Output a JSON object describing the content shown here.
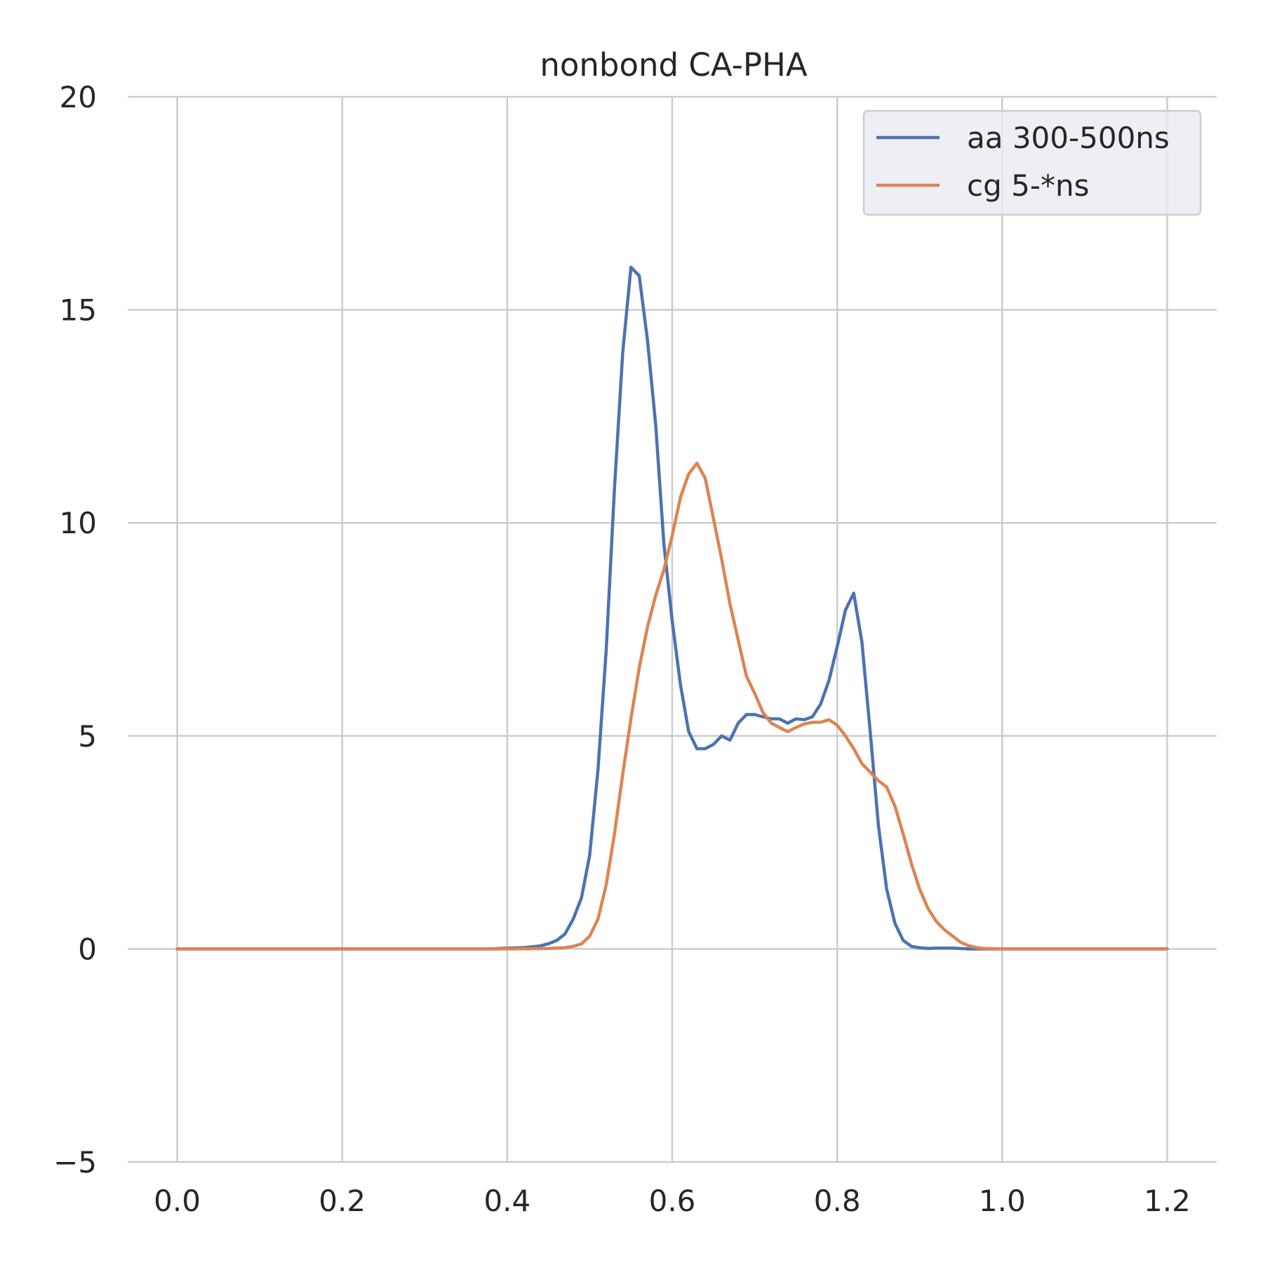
{
  "chart_data": {
    "type": "line",
    "title": "nonbond CA-PHA",
    "xlabel": "",
    "ylabel": "",
    "xlim": [
      -0.06,
      1.26
    ],
    "ylim": [
      -5,
      20
    ],
    "xticks": [
      0.0,
      0.2,
      0.4,
      0.6,
      0.8,
      1.0,
      1.2
    ],
    "xtick_labels": [
      "0.0",
      "0.2",
      "0.4",
      "0.6",
      "0.8",
      "1.0",
      "1.2"
    ],
    "yticks": [
      -5,
      0,
      5,
      10,
      15,
      20
    ],
    "ytick_labels": [
      "−5",
      "0",
      "5",
      "10",
      "15",
      "20"
    ],
    "grid": true,
    "legend_position": "top-right",
    "series": [
      {
        "name": "aa 300-500ns",
        "color": "#4c72b0",
        "x": [
          0.0,
          0.1,
          0.2,
          0.3,
          0.38,
          0.4,
          0.42,
          0.44,
          0.45,
          0.46,
          0.47,
          0.48,
          0.49,
          0.5,
          0.51,
          0.52,
          0.53,
          0.54,
          0.55,
          0.56,
          0.57,
          0.58,
          0.59,
          0.6,
          0.61,
          0.62,
          0.63,
          0.64,
          0.65,
          0.66,
          0.67,
          0.68,
          0.69,
          0.7,
          0.71,
          0.72,
          0.73,
          0.74,
          0.75,
          0.76,
          0.77,
          0.78,
          0.79,
          0.8,
          0.81,
          0.82,
          0.83,
          0.84,
          0.85,
          0.86,
          0.87,
          0.88,
          0.89,
          0.9,
          0.91,
          0.92,
          0.93,
          0.94,
          0.95,
          0.96,
          0.97,
          0.98,
          1.0,
          1.1,
          1.2
        ],
        "y": [
          0,
          0,
          0,
          0,
          0,
          0.02,
          0.03,
          0.07,
          0.12,
          0.2,
          0.35,
          0.7,
          1.2,
          2.2,
          4.2,
          7.0,
          10.8,
          14.0,
          16.0,
          15.8,
          14.3,
          12.3,
          9.5,
          7.7,
          6.2,
          5.1,
          4.7,
          4.7,
          4.8,
          5.0,
          4.9,
          5.3,
          5.5,
          5.5,
          5.45,
          5.4,
          5.4,
          5.3,
          5.4,
          5.38,
          5.45,
          5.75,
          6.3,
          7.1,
          7.95,
          8.35,
          7.2,
          5.1,
          2.9,
          1.4,
          0.6,
          0.2,
          0.06,
          0.03,
          0.01,
          0.02,
          0.02,
          0.02,
          0.01,
          0.0,
          0.0,
          0.0,
          0,
          0,
          0
        ]
      },
      {
        "name": "cg 5-*ns",
        "color": "#dd8452",
        "x": [
          0.0,
          0.1,
          0.2,
          0.3,
          0.4,
          0.45,
          0.47,
          0.48,
          0.49,
          0.5,
          0.51,
          0.52,
          0.53,
          0.54,
          0.55,
          0.56,
          0.57,
          0.58,
          0.59,
          0.6,
          0.61,
          0.62,
          0.63,
          0.64,
          0.65,
          0.66,
          0.67,
          0.68,
          0.69,
          0.7,
          0.71,
          0.72,
          0.73,
          0.74,
          0.75,
          0.76,
          0.77,
          0.78,
          0.79,
          0.8,
          0.81,
          0.82,
          0.83,
          0.84,
          0.85,
          0.86,
          0.87,
          0.88,
          0.89,
          0.9,
          0.91,
          0.92,
          0.93,
          0.94,
          0.95,
          0.96,
          0.97,
          0.98,
          1.0,
          1.1,
          1.2
        ],
        "y": [
          0,
          0,
          0,
          0,
          0,
          0.01,
          0.03,
          0.06,
          0.12,
          0.3,
          0.7,
          1.5,
          2.7,
          4.1,
          5.4,
          6.6,
          7.55,
          8.3,
          8.9,
          9.7,
          10.6,
          11.15,
          11.4,
          11.05,
          10.1,
          9.15,
          8.1,
          7.25,
          6.4,
          6.0,
          5.55,
          5.3,
          5.2,
          5.1,
          5.2,
          5.28,
          5.32,
          5.32,
          5.38,
          5.25,
          5.0,
          4.7,
          4.35,
          4.15,
          3.95,
          3.8,
          3.35,
          2.7,
          2.0,
          1.4,
          0.95,
          0.65,
          0.45,
          0.3,
          0.15,
          0.07,
          0.03,
          0.01,
          0,
          0,
          0
        ]
      }
    ]
  }
}
